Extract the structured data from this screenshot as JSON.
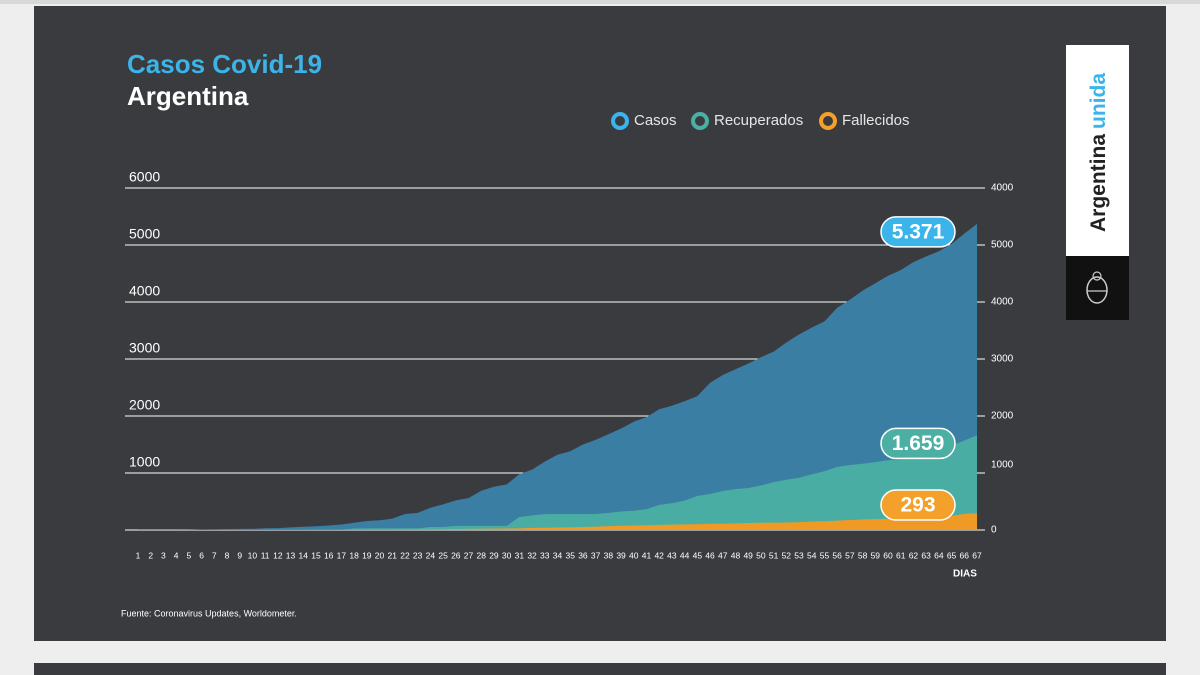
{
  "chart_data": {
    "type": "area",
    "title": "Casos Covid-19",
    "subtitle": "Argentina",
    "x_label": "DIAS",
    "source": "Fuente: Coronavirus Updates, Worldometer.",
    "categories": [
      "1",
      "2",
      "3",
      "4",
      "5",
      "6",
      "7",
      "8",
      "9",
      "10",
      "11",
      "12",
      "13",
      "14",
      "15",
      "16",
      "17",
      "18",
      "19",
      "20",
      "21",
      "22",
      "23",
      "24",
      "25",
      "26",
      "27",
      "28",
      "29",
      "30",
      "31",
      "32",
      "33",
      "34",
      "35",
      "36",
      "37",
      "38",
      "39",
      "40",
      "41",
      "42",
      "43",
      "44",
      "45",
      "46",
      "47",
      "48",
      "49",
      "50",
      "51",
      "52",
      "53",
      "54",
      "55",
      "56",
      "57",
      "58",
      "59",
      "60",
      "61",
      "62",
      "63",
      "64",
      "65",
      "66",
      "67"
    ],
    "series": [
      {
        "name": "Casos",
        "color": "#3b7ea3",
        "label_color": "#3bb4ea",
        "values": [
          1,
          1,
          1,
          2,
          2,
          8,
          12,
          17,
          19,
          21,
          31,
          34,
          45,
          56,
          65,
          79,
          97,
          128,
          158,
          170,
          200,
          280,
          300,
          390,
          450,
          520,
          560,
          690,
          760,
          800,
          980,
          1060,
          1200,
          1320,
          1380,
          1500,
          1580,
          1680,
          1780,
          1900,
          1980,
          2120,
          2180,
          2260,
          2350,
          2580,
          2720,
          2820,
          2920,
          3030,
          3130,
          3290,
          3430,
          3550,
          3660,
          3900,
          4040,
          4200,
          4330,
          4460,
          4560,
          4700,
          4800,
          4890,
          5020,
          5200,
          5371
        ],
        "value_labels": [
          null,
          null,
          null,
          null,
          null,
          null,
          null,
          null,
          null,
          null,
          null,
          null,
          null,
          null,
          null,
          null,
          null,
          null,
          null,
          null,
          null,
          null,
          null,
          null,
          null,
          null,
          null,
          null,
          null,
          null,
          null,
          null,
          null,
          null,
          null,
          null,
          null,
          null,
          null,
          null,
          null,
          null,
          null,
          null,
          null,
          null,
          null,
          null,
          null,
          null,
          null,
          null,
          null,
          null,
          null,
          null,
          null,
          null,
          null,
          null,
          null,
          null,
          null,
          null,
          null,
          null,
          "5.371"
        ]
      },
      {
        "name": "Recuperados",
        "color": "#49ada3",
        "label_color": "#4bb0a3",
        "values": [
          0,
          0,
          0,
          0,
          0,
          0,
          0,
          0,
          0,
          0,
          0,
          0,
          0,
          1,
          3,
          3,
          3,
          27,
          28,
          28,
          28,
          28,
          28,
          52,
          52,
          72,
          72,
          72,
          72,
          72,
          228,
          256,
          279,
          280,
          280,
          280,
          280,
          300,
          325,
          338,
          365,
          440,
          468,
          515,
          596,
          632,
          685,
          718,
          737,
          780,
          840,
          880,
          916,
          976,
          1030,
          1107,
          1140,
          1162,
          1192,
          1225,
          1245,
          1320,
          1354,
          1440,
          1480,
          1570,
          1659
        ],
        "value_labels": [
          null,
          null,
          null,
          null,
          null,
          null,
          null,
          null,
          null,
          null,
          null,
          null,
          null,
          null,
          null,
          null,
          null,
          null,
          null,
          null,
          null,
          null,
          null,
          null,
          null,
          null,
          null,
          null,
          null,
          null,
          null,
          null,
          null,
          null,
          null,
          null,
          null,
          null,
          null,
          null,
          null,
          null,
          null,
          null,
          null,
          null,
          null,
          null,
          null,
          null,
          null,
          null,
          null,
          null,
          null,
          null,
          null,
          null,
          null,
          null,
          null,
          null,
          null,
          null,
          null,
          null,
          "1.659"
        ]
      },
      {
        "name": "Fallecidos",
        "color": "#f09a26",
        "label_color": "#f3a12b",
        "values": [
          0,
          0,
          0,
          0,
          1,
          1,
          2,
          2,
          2,
          2,
          2,
          2,
          2,
          2,
          2,
          2,
          3,
          4,
          4,
          4,
          6,
          7,
          8,
          9,
          12,
          18,
          19,
          23,
          24,
          27,
          28,
          36,
          39,
          43,
          46,
          53,
          60,
          65,
          76,
          79,
          82,
          90,
          95,
          98,
          101,
          108,
          111,
          115,
          123,
          127,
          129,
          132,
          136,
          147,
          152,
          165,
          176,
          185,
          192,
          197,
          207,
          214,
          225,
          237,
          246,
          282,
          293
        ],
        "value_labels": [
          null,
          null,
          null,
          null,
          null,
          null,
          null,
          null,
          null,
          null,
          null,
          null,
          null,
          null,
          null,
          null,
          null,
          null,
          null,
          null,
          null,
          null,
          null,
          null,
          null,
          null,
          null,
          null,
          null,
          null,
          null,
          null,
          null,
          null,
          null,
          null,
          null,
          null,
          null,
          null,
          null,
          null,
          null,
          null,
          null,
          null,
          null,
          null,
          null,
          null,
          null,
          null,
          null,
          null,
          null,
          null,
          null,
          null,
          null,
          null,
          null,
          null,
          null,
          null,
          null,
          null,
          "293"
        ]
      }
    ],
    "ylim": [
      0,
      6000
    ],
    "yticks": [
      1000,
      2000,
      3000,
      4000,
      5000,
      6000
    ],
    "grid": true,
    "right_axis_labels": [
      "0",
      "1000",
      "2000",
      "3000",
      "4000",
      "5000",
      "4000"
    ]
  },
  "brand": {
    "word1": "Argentina",
    "word2": "unida"
  }
}
